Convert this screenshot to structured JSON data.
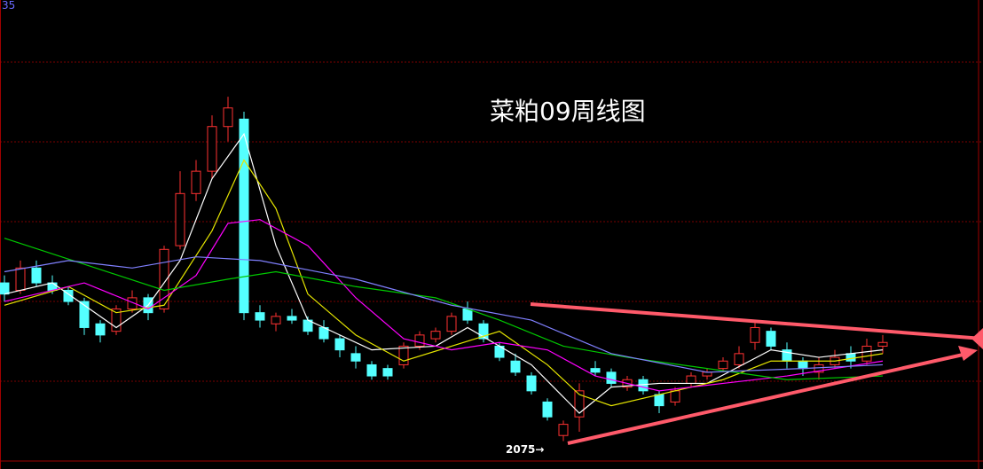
{
  "chart_data": {
    "type": "candlestick",
    "title": "菜粕09周线图",
    "corner_label": "35",
    "low_label": "2075→",
    "ylim": [
      2000,
      3260
    ],
    "up_color": "#ff3232",
    "down_color": "#54ffff",
    "open": [
      2500,
      2480,
      2540,
      2500,
      2480,
      2450,
      2390,
      2370,
      2430,
      2460,
      2430,
      2600,
      2740,
      2800,
      2920,
      2940,
      2420,
      2390,
      2410,
      2400,
      2380,
      2350,
      2310,
      2280,
      2270,
      2280,
      2330,
      2350,
      2370,
      2430,
      2390,
      2330,
      2290,
      2250,
      2180,
      2090,
      2140,
      2270,
      2260,
      2220,
      2240,
      2200,
      2180,
      2230,
      2250,
      2270,
      2280,
      2340,
      2370,
      2320,
      2290,
      2260,
      2280,
      2310,
      2290,
      2330
    ],
    "high": [
      2520,
      2560,
      2560,
      2520,
      2490,
      2460,
      2400,
      2440,
      2480,
      2470,
      2600,
      2800,
      2830,
      2950,
      3000,
      2960,
      2440,
      2420,
      2430,
      2410,
      2400,
      2360,
      2330,
      2290,
      2280,
      2340,
      2370,
      2380,
      2420,
      2450,
      2400,
      2340,
      2310,
      2260,
      2190,
      2130,
      2230,
      2290,
      2270,
      2250,
      2250,
      2210,
      2220,
      2260,
      2270,
      2300,
      2330,
      2400,
      2380,
      2340,
      2300,
      2300,
      2320,
      2330,
      2350,
      2360
    ],
    "low": [
      2450,
      2470,
      2490,
      2470,
      2440,
      2360,
      2340,
      2360,
      2420,
      2400,
      2420,
      2590,
      2720,
      2780,
      2880,
      2400,
      2380,
      2370,
      2390,
      2360,
      2340,
      2300,
      2270,
      2240,
      2240,
      2270,
      2320,
      2340,
      2360,
      2390,
      2340,
      2290,
      2250,
      2200,
      2130,
      2075,
      2100,
      2250,
      2220,
      2210,
      2200,
      2150,
      2170,
      2220,
      2240,
      2260,
      2270,
      2320,
      2320,
      2270,
      2250,
      2240,
      2270,
      2270,
      2280,
      2310
    ],
    "close": [
      2470,
      2540,
      2500,
      2480,
      2450,
      2380,
      2360,
      2430,
      2460,
      2420,
      2590,
      2740,
      2800,
      2920,
      2970,
      2420,
      2400,
      2410,
      2400,
      2370,
      2350,
      2320,
      2290,
      2250,
      2250,
      2330,
      2360,
      2370,
      2410,
      2400,
      2350,
      2300,
      2260,
      2210,
      2140,
      2120,
      2210,
      2260,
      2230,
      2240,
      2210,
      2170,
      2210,
      2250,
      2260,
      2290,
      2310,
      2380,
      2330,
      2290,
      2270,
      2280,
      2300,
      2290,
      2330,
      2340
    ],
    "lines": [
      {
        "color": "#ffffff",
        "x": [
          0,
          3,
          5,
          7,
          9,
          11,
          13,
          15,
          17,
          19,
          23,
          27,
          29,
          33,
          36,
          38,
          41,
          44,
          48,
          51,
          55
        ],
        "values": [
          2470,
          2500,
          2440,
          2380,
          2440,
          2560,
          2780,
          2900,
          2600,
          2400,
          2320,
          2330,
          2380,
          2280,
          2150,
          2220,
          2230,
          2230,
          2320,
          2300,
          2320
        ]
      },
      {
        "color": "#e6e600",
        "x": [
          0,
          4,
          7,
          10,
          13,
          15,
          17,
          19,
          22,
          25,
          28,
          31,
          34,
          36,
          38,
          41,
          45,
          48,
          52,
          55
        ],
        "values": [
          2440,
          2490,
          2420,
          2440,
          2640,
          2830,
          2700,
          2470,
          2360,
          2290,
          2330,
          2370,
          2280,
          2200,
          2170,
          2200,
          2240,
          2290,
          2290,
          2310
        ]
      },
      {
        "color": "#ff00ff",
        "x": [
          0,
          5,
          9,
          12,
          14,
          16,
          19,
          22,
          25,
          28,
          31,
          34,
          37,
          41,
          45,
          49,
          52,
          55
        ],
        "values": [
          2450,
          2500,
          2430,
          2520,
          2660,
          2670,
          2600,
          2460,
          2350,
          2320,
          2340,
          2320,
          2250,
          2210,
          2230,
          2250,
          2270,
          2290
        ]
      },
      {
        "color": "#00c800",
        "x": [
          0,
          5,
          10,
          14,
          17,
          22,
          27,
          31,
          35,
          39,
          44,
          49,
          55
        ],
        "values": [
          2620,
          2550,
          2480,
          2510,
          2530,
          2490,
          2460,
          2400,
          2330,
          2300,
          2270,
          2240,
          2250
        ]
      },
      {
        "color": "#8080ff",
        "x": [
          0,
          4,
          8,
          12,
          16,
          22,
          28,
          33,
          38,
          44,
          50,
          55
        ],
        "values": [
          2530,
          2560,
          2540,
          2570,
          2560,
          2510,
          2440,
          2400,
          2310,
          2260,
          2270,
          2280
        ]
      }
    ]
  }
}
